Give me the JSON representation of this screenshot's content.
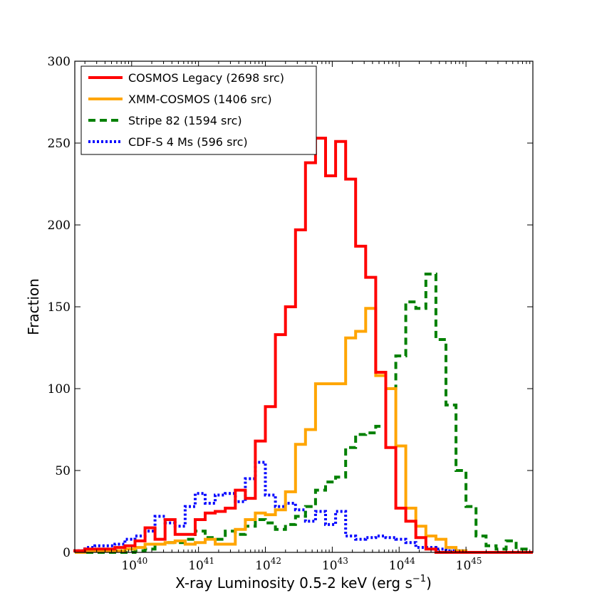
{
  "chart_data": {
    "type": "histogram",
    "title": "",
    "xlabel": "X-ray Luminosity 0.5-2 keV (erg s",
    "xlabel_exp": "−1",
    "xlabel_close": ")",
    "ylabel": "Fraction",
    "xscale": "log",
    "xlim_log10": [
      39.15,
      46.0
    ],
    "ylim": [
      0,
      300
    ],
    "yticks": [
      0,
      50,
      100,
      150,
      200,
      250,
      300
    ],
    "yticklabels": [
      "0",
      "50",
      "100",
      "150",
      "200",
      "250",
      "300"
    ],
    "xticks_log10": [
      40,
      41,
      42,
      43,
      44,
      45
    ],
    "xtick_base": "10",
    "xtick_exponents": [
      "40",
      "41",
      "42",
      "43",
      "44",
      "45"
    ],
    "legend_position": "top-left",
    "series": [
      {
        "name": "COSMOS Legacy (2698 src)",
        "color": "#ff0000",
        "style": "solid",
        "bin_edges_log10": [
          39.15,
          39.3,
          39.45,
          39.6,
          39.75,
          39.9,
          40.05,
          40.2,
          40.35,
          40.5,
          40.65,
          40.8,
          40.95,
          41.1,
          41.25,
          41.4,
          41.55,
          41.7,
          41.85,
          42.0,
          42.15,
          42.3,
          42.45,
          42.6,
          42.75,
          42.9,
          43.05,
          43.2,
          43.35,
          43.5,
          43.65,
          43.8,
          43.95,
          44.1,
          44.25,
          44.4,
          44.55,
          44.7,
          44.85,
          45.0,
          45.15,
          45.3,
          45.45,
          45.6,
          45.75,
          45.9,
          46.0
        ],
        "counts": [
          1,
          2,
          2,
          2,
          3,
          4,
          7,
          15,
          8,
          20,
          11,
          11,
          20,
          24,
          25,
          27,
          38,
          33,
          68,
          89,
          133,
          150,
          197,
          238,
          253,
          230,
          251,
          228,
          187,
          168,
          110,
          64,
          27,
          19,
          9,
          2,
          0,
          0,
          0,
          0,
          0,
          0,
          0,
          0,
          0,
          0
        ]
      },
      {
        "name": "XMM-COSMOS (1406 src)",
        "color": "#ffa500",
        "style": "solid",
        "bin_edges_log10": [
          39.15,
          39.3,
          39.45,
          39.6,
          39.75,
          39.9,
          40.05,
          40.2,
          40.35,
          40.5,
          40.65,
          40.8,
          40.95,
          41.1,
          41.25,
          41.4,
          41.55,
          41.7,
          41.85,
          42.0,
          42.15,
          42.3,
          42.45,
          42.6,
          42.75,
          42.9,
          43.05,
          43.2,
          43.35,
          43.5,
          43.65,
          43.8,
          43.95,
          44.1,
          44.25,
          44.4,
          44.55,
          44.7,
          44.85,
          45.0,
          45.15,
          45.3,
          45.45,
          45.6,
          45.75,
          45.9,
          46.0
        ],
        "counts": [
          0,
          1,
          1,
          1,
          1,
          2,
          3,
          5,
          5,
          6,
          7,
          5,
          6,
          8,
          5,
          5,
          14,
          20,
          24,
          23,
          26,
          37,
          66,
          75,
          103,
          103,
          103,
          131,
          135,
          149,
          108,
          100,
          65,
          27,
          16,
          10,
          8,
          3,
          1,
          0,
          0,
          0,
          0,
          0,
          0,
          0
        ]
      },
      {
        "name": "Stripe 82 (1594 src)",
        "color": "#008000",
        "style": "dashed",
        "bin_edges_log10": [
          39.15,
          39.3,
          39.45,
          39.6,
          39.75,
          39.9,
          40.05,
          40.2,
          40.35,
          40.5,
          40.65,
          40.8,
          40.95,
          41.1,
          41.25,
          41.4,
          41.55,
          41.7,
          41.85,
          42.0,
          42.15,
          42.3,
          42.45,
          42.6,
          42.75,
          42.9,
          43.05,
          43.2,
          43.35,
          43.5,
          43.65,
          43.8,
          43.95,
          44.1,
          44.25,
          44.4,
          44.55,
          44.7,
          44.85,
          45.0,
          45.15,
          45.3,
          45.45,
          45.6,
          45.75,
          45.9,
          46.0
        ],
        "counts": [
          0,
          0,
          0,
          0,
          0,
          0,
          1,
          2,
          5,
          6,
          6,
          8,
          13,
          9,
          8,
          13,
          11,
          16,
          20,
          18,
          14,
          17,
          22,
          28,
          38,
          43,
          46,
          64,
          72,
          73,
          77,
          100,
          120,
          153,
          149,
          170,
          130,
          90,
          50,
          28,
          10,
          4,
          2,
          7,
          2,
          0
        ]
      },
      {
        "name": "CDF-S 4 Ms (596 src)",
        "color": "#0000ff",
        "style": "dotted",
        "bin_edges_log10": [
          39.15,
          39.3,
          39.45,
          39.6,
          39.75,
          39.9,
          40.05,
          40.2,
          40.35,
          40.5,
          40.65,
          40.8,
          40.95,
          41.1,
          41.25,
          41.4,
          41.55,
          41.7,
          41.85,
          42.0,
          42.15,
          42.3,
          42.45,
          42.6,
          42.75,
          42.9,
          43.05,
          43.2,
          43.35,
          43.5,
          43.65,
          43.8,
          43.95,
          44.1,
          44.25,
          44.4,
          44.55,
          44.7,
          44.85,
          45.0,
          45.15,
          45.3,
          45.45,
          45.6,
          45.75,
          45.9,
          46.0
        ],
        "counts": [
          1,
          3,
          4,
          4,
          5,
          8,
          10,
          13,
          22,
          18,
          16,
          28,
          36,
          30,
          35,
          36,
          31,
          45,
          55,
          35,
          28,
          30,
          26,
          19,
          25,
          17,
          25,
          10,
          8,
          9,
          10,
          9,
          8,
          6,
          3,
          3,
          2,
          1,
          1,
          0,
          0,
          0,
          0,
          0,
          0,
          0
        ]
      }
    ]
  }
}
